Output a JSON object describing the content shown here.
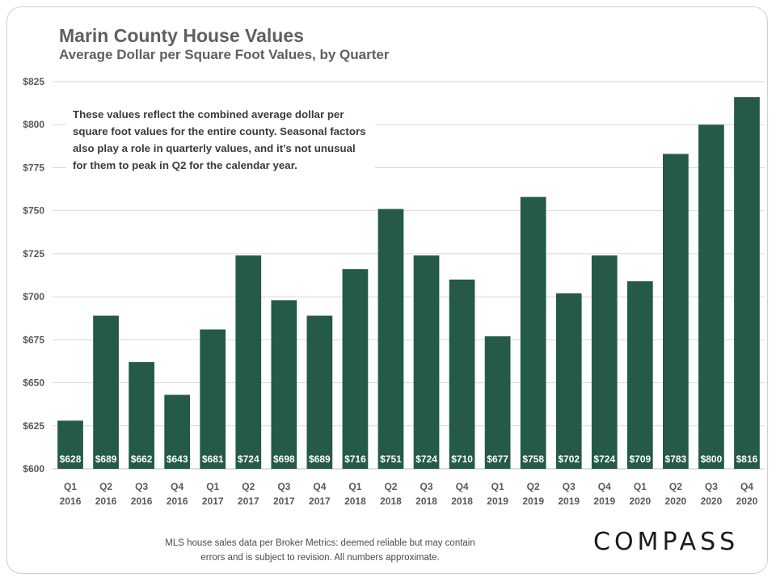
{
  "title": "Marin County House Values",
  "subtitle": "Average Dollar per Square Foot Values, by Quarter",
  "note": "These values reflect the combined average dollar per square foot values for the entire county. Seasonal factors also play a role in quarterly values, and it’s not unusual for them to peak in Q2 for the calendar year.",
  "source": "MLS house sales data per Broker Metrics: deemed reliable but may contain errors and is subject to revision. All numbers approximate.",
  "logo": "COMPASS",
  "colors": {
    "bar": "#245a47",
    "grid": "#d9d9d9",
    "axis_text": "#595959"
  },
  "chart_data": {
    "type": "bar",
    "title": "Marin County House Values",
    "subtitle": "Average Dollar per Square Foot Values, by Quarter",
    "categories": [
      [
        "Q1",
        "2016"
      ],
      [
        "Q2",
        "2016"
      ],
      [
        "Q3",
        "2016"
      ],
      [
        "Q4",
        "2016"
      ],
      [
        "Q1",
        "2017"
      ],
      [
        "Q2",
        "2017"
      ],
      [
        "Q3",
        "2017"
      ],
      [
        "Q4",
        "2017"
      ],
      [
        "Q1",
        "2018"
      ],
      [
        "Q2",
        "2018"
      ],
      [
        "Q3",
        "2018"
      ],
      [
        "Q4",
        "2018"
      ],
      [
        "Q1",
        "2019"
      ],
      [
        "Q2",
        "2019"
      ],
      [
        "Q3",
        "2019"
      ],
      [
        "Q4",
        "2019"
      ],
      [
        "Q1",
        "2020"
      ],
      [
        "Q2",
        "2020"
      ],
      [
        "Q3",
        "2020"
      ],
      [
        "Q4",
        "2020"
      ]
    ],
    "values": [
      628,
      689,
      662,
      643,
      681,
      724,
      698,
      689,
      716,
      751,
      724,
      710,
      677,
      758,
      702,
      724,
      709,
      783,
      800,
      816
    ],
    "data_labels": [
      "$628",
      "$689",
      "$662",
      "$643",
      "$681",
      "$724",
      "$698",
      "$689",
      "$716",
      "$751",
      "$724",
      "$710",
      "$677",
      "$758",
      "$702",
      "$724",
      "$709",
      "$783",
      "$800",
      "$816"
    ],
    "ylim": [
      600,
      825
    ],
    "yticks": [
      600,
      625,
      650,
      675,
      700,
      725,
      750,
      775,
      800,
      825
    ],
    "ytick_labels": [
      "$600",
      "$625",
      "$650",
      "$675",
      "$700",
      "$725",
      "$750",
      "$775",
      "$800",
      "$825"
    ],
    "grid": true,
    "legend": "none"
  }
}
